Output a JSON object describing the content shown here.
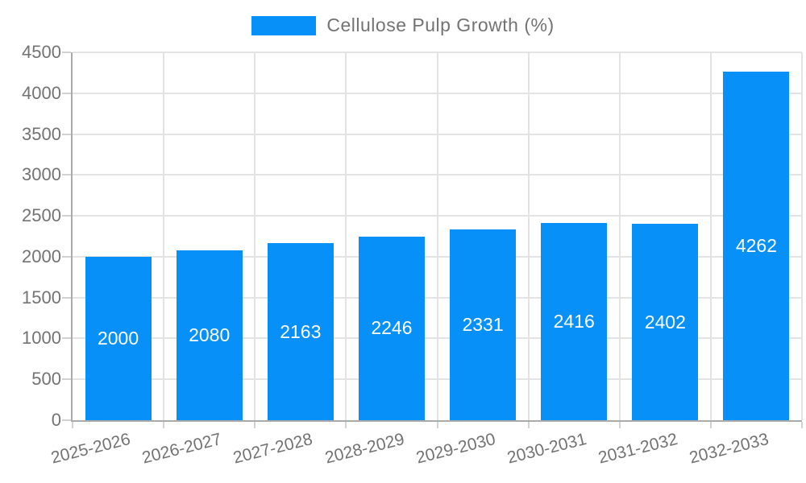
{
  "chart_data": {
    "type": "bar",
    "title": "Cellulose Pulp Growth (%)",
    "categories": [
      "2025-2026",
      "2026-2027",
      "2027-2028",
      "2028-2029",
      "2029-2030",
      "2030-2031",
      "2031-2032",
      "2032-2033"
    ],
    "values": [
      2000,
      2080,
      2163,
      2246,
      2331,
      2416,
      2402,
      4262
    ],
    "value_labels": [
      "2000",
      "2080",
      "2163",
      "2246",
      "2331",
      "2416",
      "2402",
      "4262"
    ],
    "xlabel": "",
    "ylabel": "",
    "ylim": [
      0,
      4500
    ],
    "yticks": [
      0,
      500,
      1000,
      1500,
      2000,
      2500,
      3000,
      3500,
      4000,
      4500
    ],
    "grid": true,
    "legend_position": "top",
    "bar_color": "#0690f8",
    "grid_color": "#e3e3e3",
    "axis_color": "#ababab",
    "tick_color": "#d2d2d2",
    "text_color": "#737373",
    "value_label_color": "#ffffff"
  },
  "legend": {
    "label": "Cellulose Pulp Growth (%)"
  }
}
